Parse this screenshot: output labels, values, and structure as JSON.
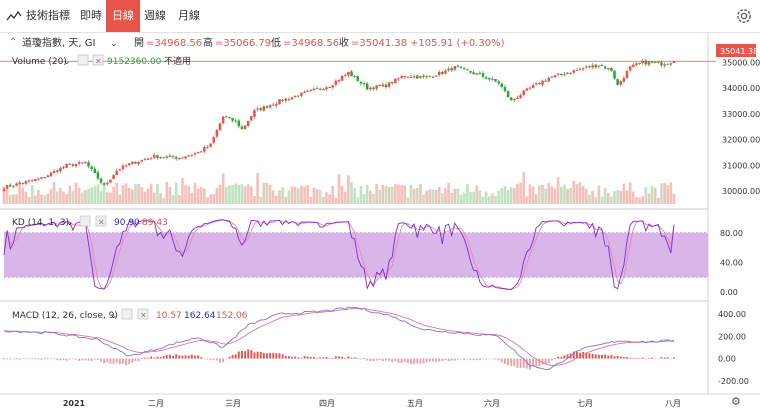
{
  "toolbar": {
    "indicators_label": "技術指標",
    "tabs": [
      {
        "label": "即時",
        "active": false
      },
      {
        "label": "日線",
        "active": true
      },
      {
        "label": "週線",
        "active": false
      },
      {
        "label": "月線",
        "active": false
      }
    ],
    "gear_icon": "gear-icon"
  },
  "legend": {
    "symbol": "道瓊指數, 天, GI",
    "open_label": "開",
    "open": "=34968.56",
    "high_label": "高",
    "high": "=35066.79",
    "low_label": "低",
    "low": "=34968.56",
    "close_label": "收",
    "close": "=35041.38",
    "change": "+105.91 (+0.30%)"
  },
  "volume": {
    "label": "Volume (20)",
    "value": "9152360.00",
    "na": "不適用"
  },
  "kd": {
    "label": "KD (14, 1, 3)",
    "k": "90.90",
    "d": "89.43"
  },
  "macd": {
    "label": "MACD (12, 26, close, 9)",
    "v1": "10.57",
    "v2": "162.64",
    "v3": "152.06"
  },
  "price_tag": "35041.38",
  "colors": {
    "up": "#e8534a",
    "down": "#2ea33a",
    "kd_band": "#d4a8e6",
    "k": "#7a2fd0",
    "d": "#e38ab0",
    "macd": "#7a76d6",
    "signal": "#e8738c"
  },
  "chart_data": [
    {
      "type": "candlestick",
      "title": "道瓊指數, 天, GI",
      "x_ticks": [
        "2021",
        "二月",
        "三月",
        "四月",
        "五月",
        "六月",
        "七月",
        "八月"
      ],
      "y_ticks": [
        30000.0,
        31000.0,
        32000.0,
        33000.0,
        34000.0,
        35000.0
      ],
      "ylim": [
        29500,
        35400
      ],
      "anchors_close": [
        [
          0,
          30150
        ],
        [
          12,
          30500
        ],
        [
          20,
          31000
        ],
        [
          26,
          31100
        ],
        [
          32,
          30200
        ],
        [
          36,
          30800
        ],
        [
          40,
          31050
        ],
        [
          48,
          31350
        ],
        [
          56,
          31300
        ],
        [
          62,
          31500
        ],
        [
          66,
          31800
        ],
        [
          70,
          32900
        ],
        [
          74,
          32700
        ],
        [
          76,
          32400
        ],
        [
          80,
          33100
        ],
        [
          88,
          33500
        ],
        [
          96,
          33800
        ],
        [
          104,
          34100
        ],
        [
          110,
          34600
        ],
        [
          116,
          34000
        ],
        [
          122,
          34100
        ],
        [
          128,
          34500
        ],
        [
          134,
          34400
        ],
        [
          140,
          34600
        ],
        [
          144,
          34800
        ],
        [
          152,
          34500
        ],
        [
          158,
          34200
        ],
        [
          162,
          33500
        ],
        [
          168,
          34000
        ],
        [
          174,
          34400
        ],
        [
          180,
          34600
        ],
        [
          186,
          34800
        ],
        [
          190,
          34900
        ],
        [
          194,
          34700
        ],
        [
          196,
          34100
        ],
        [
          200,
          34800
        ],
        [
          204,
          35000
        ],
        [
          210,
          34950
        ],
        [
          214,
          35041
        ]
      ],
      "last": {
        "open": 34968.56,
        "high": 35066.79,
        "low": 34968.56,
        "close": 35041.38
      }
    },
    {
      "type": "bar",
      "title": "Volume (20)",
      "last_value": 9152360.0
    },
    {
      "type": "line",
      "title": "KD (14, 1, 3)",
      "y_ticks": [
        0.0,
        40.0,
        80.0
      ],
      "ylim": [
        -8,
        108
      ],
      "band": [
        20,
        80
      ],
      "series": [
        {
          "name": "K",
          "last": 90.9
        },
        {
          "name": "D",
          "last": 89.43
        }
      ]
    },
    {
      "type": "line",
      "title": "MACD (12, 26, close, 9)",
      "y_ticks": [
        -200.0,
        0.0,
        200.0,
        400.0
      ],
      "ylim": [
        -300,
        490
      ],
      "macd_anchors": [
        [
          0,
          250
        ],
        [
          15,
          230
        ],
        [
          30,
          170
        ],
        [
          40,
          20
        ],
        [
          48,
          80
        ],
        [
          55,
          140
        ],
        [
          62,
          190
        ],
        [
          70,
          100
        ],
        [
          78,
          300
        ],
        [
          88,
          400
        ],
        [
          100,
          420
        ],
        [
          112,
          460
        ],
        [
          124,
          380
        ],
        [
          134,
          260
        ],
        [
          146,
          230
        ],
        [
          158,
          200
        ],
        [
          168,
          -60
        ],
        [
          174,
          -100
        ],
        [
          184,
          80
        ],
        [
          196,
          160
        ],
        [
          206,
          150
        ],
        [
          214,
          162
        ]
      ],
      "series": [
        {
          "name": "MACD",
          "last": 162.64
        },
        {
          "name": "Signal",
          "last": 152.06
        },
        {
          "name": "Histogram",
          "last": 10.57
        }
      ]
    }
  ]
}
